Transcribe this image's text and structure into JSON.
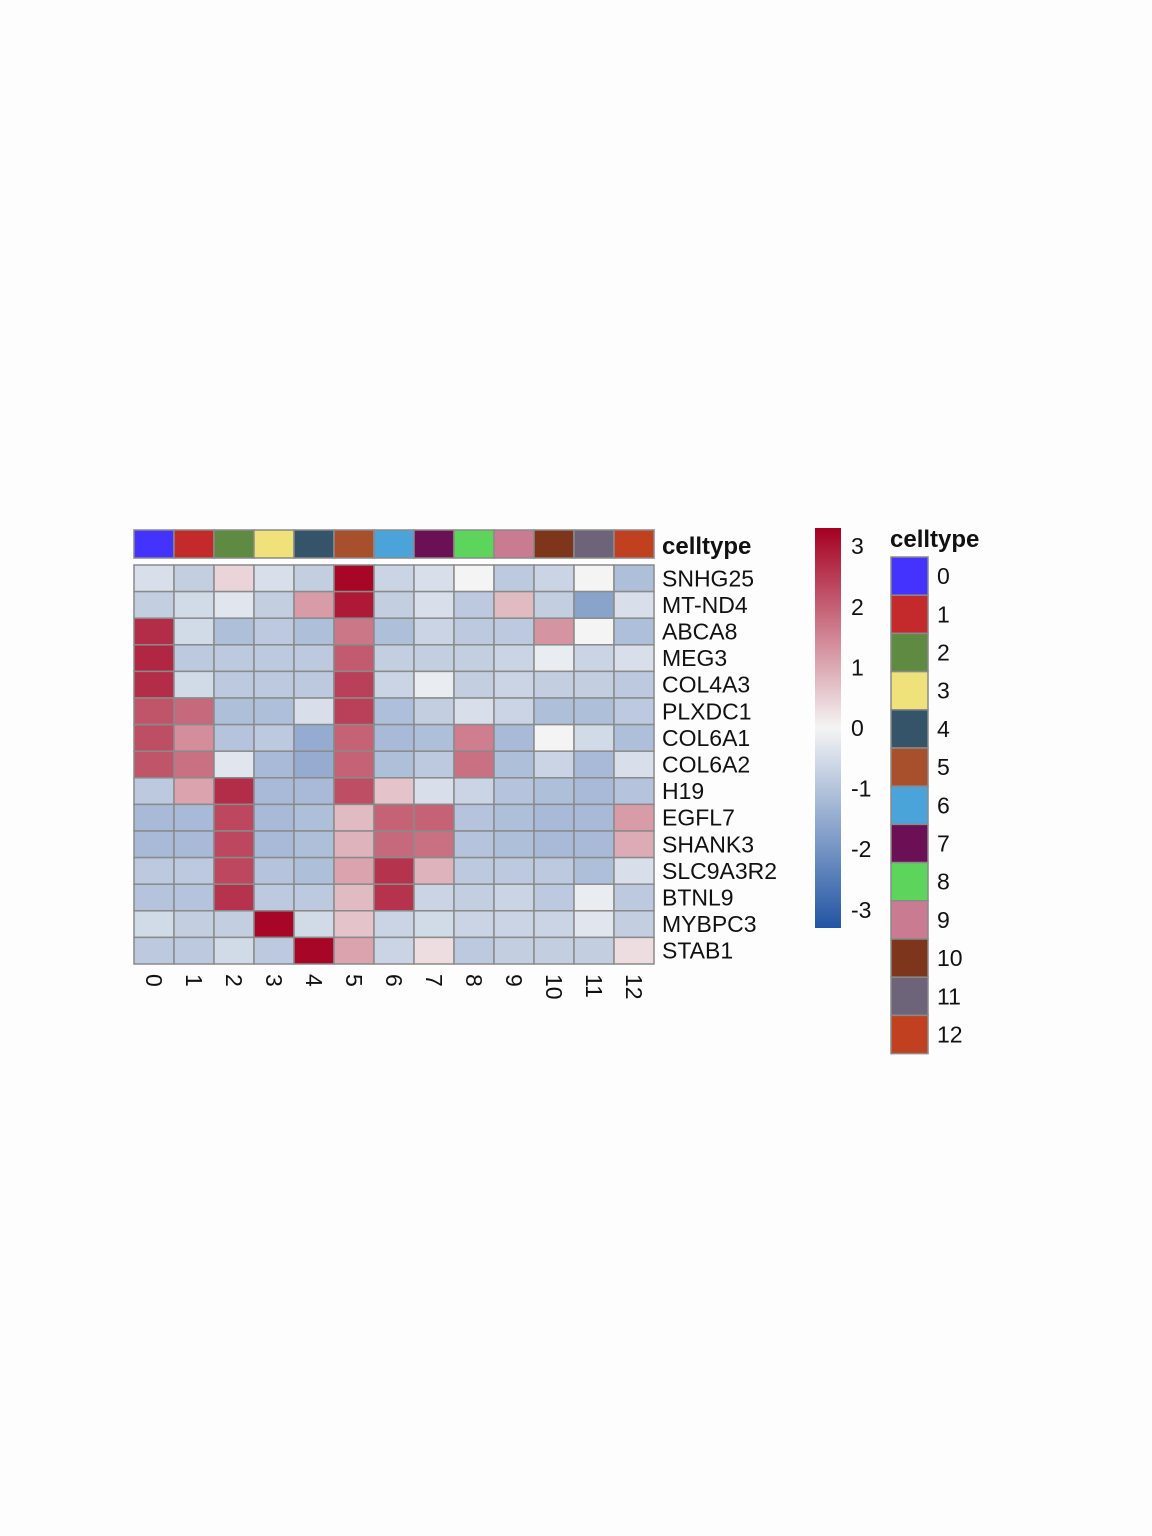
{
  "chart_data": {
    "type": "heatmap",
    "annotation_label": "celltype",
    "columns": [
      "0",
      "1",
      "2",
      "3",
      "4",
      "5",
      "6",
      "7",
      "8",
      "9",
      "10",
      "11",
      "12"
    ],
    "rows": [
      "SNHG25",
      "MT-ND4",
      "ABCA8",
      "MEG3",
      "COL4A3",
      "PLXDC1",
      "COL6A1",
      "COL6A2",
      "H19",
      "EGFL7",
      "SHANK3",
      "SLC9A3R2",
      "BTNL9",
      "MYBPC3",
      "STAB1"
    ],
    "values": [
      [
        -0.3,
        -0.6,
        0.3,
        -0.3,
        -0.6,
        3.2,
        -0.5,
        -0.3,
        0.0,
        -0.7,
        -0.5,
        0.0,
        -0.9
      ],
      [
        -0.6,
        -0.4,
        -0.2,
        -0.6,
        1.0,
        2.9,
        -0.6,
        -0.3,
        -0.7,
        0.6,
        -0.6,
        -1.5,
        -0.3
      ],
      [
        2.6,
        -0.4,
        -0.9,
        -0.7,
        -0.9,
        1.5,
        -0.9,
        -0.5,
        -0.7,
        -0.7,
        1.1,
        0.0,
        -0.9
      ],
      [
        2.7,
        -0.7,
        -0.7,
        -0.7,
        -0.7,
        1.9,
        -0.6,
        -0.6,
        -0.6,
        -0.5,
        -0.1,
        -0.5,
        -0.3
      ],
      [
        2.6,
        -0.4,
        -0.7,
        -0.7,
        -0.7,
        2.3,
        -0.5,
        -0.1,
        -0.6,
        -0.5,
        -0.6,
        -0.6,
        -0.7
      ],
      [
        2.0,
        1.7,
        -0.9,
        -0.9,
        -0.3,
        2.3,
        -0.9,
        -0.6,
        -0.3,
        -0.5,
        -0.9,
        -0.9,
        -0.7
      ],
      [
        2.1,
        1.2,
        -0.8,
        -0.7,
        -1.3,
        1.8,
        -1.0,
        -0.9,
        1.4,
        -1.0,
        0.0,
        -0.4,
        -0.9
      ],
      [
        2.0,
        1.6,
        -0.2,
        -1.0,
        -1.3,
        1.8,
        -0.9,
        -0.7,
        1.6,
        -0.9,
        -0.5,
        -1.0,
        -0.3
      ],
      [
        -0.7,
        0.9,
        2.6,
        -1.0,
        -1.0,
        2.1,
        0.5,
        -0.3,
        -0.5,
        -0.8,
        -0.9,
        -1.0,
        -0.8
      ],
      [
        -1.0,
        -1.0,
        2.2,
        -1.0,
        -0.9,
        0.6,
        1.8,
        1.8,
        -0.8,
        -0.9,
        -1.0,
        -1.0,
        1.0
      ],
      [
        -1.0,
        -1.0,
        2.2,
        -1.0,
        -0.9,
        0.7,
        1.7,
        1.6,
        -0.8,
        -0.9,
        -1.0,
        -1.0,
        0.8
      ],
      [
        -0.7,
        -0.7,
        2.2,
        -0.8,
        -0.9,
        0.9,
        2.5,
        0.7,
        -0.7,
        -0.7,
        -0.7,
        -0.9,
        -0.3
      ],
      [
        -0.8,
        -0.8,
        2.5,
        -0.7,
        -0.7,
        0.6,
        2.5,
        -0.5,
        -0.6,
        -0.5,
        -0.7,
        -0.1,
        -0.7
      ],
      [
        -0.4,
        -0.6,
        -0.6,
        3.2,
        -0.4,
        0.5,
        -0.5,
        -0.4,
        -0.5,
        -0.5,
        -0.5,
        -0.2,
        -0.6
      ],
      [
        -0.7,
        -0.7,
        -0.4,
        -0.7,
        3.2,
        0.9,
        -0.5,
        0.2,
        -0.7,
        -0.6,
        -0.6,
        -0.6,
        0.2
      ]
    ],
    "celltype_colors": [
      "#4433ff",
      "#c4292c",
      "#5e8b41",
      "#efe27a",
      "#355369",
      "#a84f2c",
      "#4ba4d9",
      "#6b1054",
      "#5dd55d",
      "#c97c91",
      "#7d361c",
      "#6e6479",
      "#c0401f"
    ],
    "colorbar_ticks": [
      3,
      2,
      1,
      0,
      -1,
      -2,
      -3
    ],
    "colorbar_range": [
      -3.3,
      3.3
    ],
    "colorbar_colors": [
      "#2255a4",
      "#f4f4f4",
      "#a50021"
    ],
    "legend_title": "celltype",
    "legend_items": [
      "0",
      "1",
      "2",
      "3",
      "4",
      "5",
      "6",
      "7",
      "8",
      "9",
      "10",
      "11",
      "12"
    ]
  }
}
